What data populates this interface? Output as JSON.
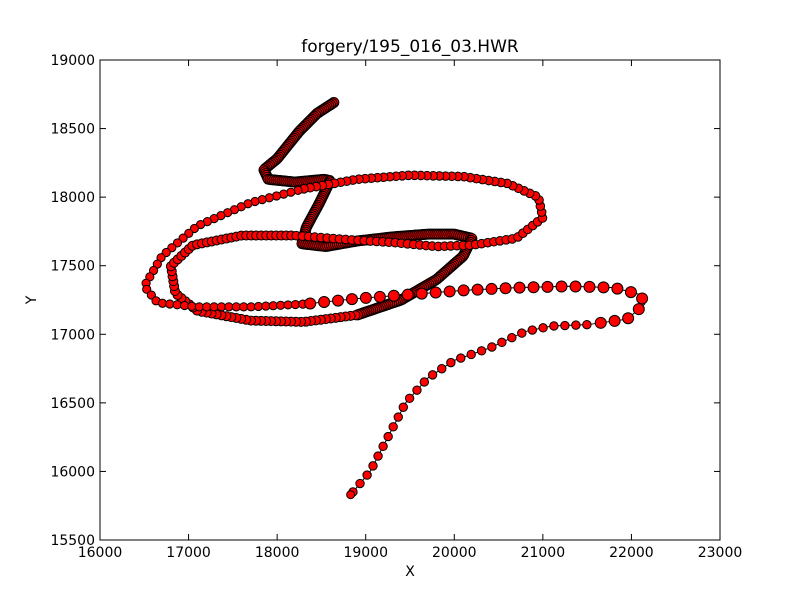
{
  "chart_data": {
    "type": "scatter",
    "title": "forgery/195_016_03.HWR",
    "xlabel": "X",
    "ylabel": "Y",
    "xlim": [
      16000,
      23000
    ],
    "ylim": [
      15500,
      19000
    ],
    "xticks": [
      "16000",
      "17000",
      "18000",
      "19000",
      "20000",
      "21000",
      "22000",
      "23000"
    ],
    "yticks": [
      "15500",
      "16000",
      "16500",
      "17000",
      "17500",
      "18000",
      "18500",
      "19000"
    ],
    "grid": false,
    "legend": "none",
    "marker_color": "#ff0000",
    "marker_edge_color": "#000000",
    "stroke_path": [
      [
        18640,
        18690
      ],
      [
        18450,
        18610
      ],
      [
        18250,
        18480
      ],
      [
        18000,
        18280
      ],
      [
        17850,
        18200
      ],
      [
        17900,
        18130
      ],
      [
        18200,
        18110
      ],
      [
        18530,
        18130
      ],
      [
        18600,
        18120
      ],
      [
        18480,
        17960
      ],
      [
        18330,
        17780
      ],
      [
        18280,
        17660
      ],
      [
        18550,
        17640
      ],
      [
        18900,
        17680
      ],
      [
        19300,
        17710
      ],
      [
        19700,
        17730
      ],
      [
        20000,
        17730
      ],
      [
        20200,
        17700
      ],
      [
        20100,
        17570
      ],
      [
        19800,
        17400
      ],
      [
        19400,
        17250
      ],
      [
        18900,
        17140
      ],
      [
        18300,
        17090
      ],
      [
        17700,
        17100
      ],
      [
        17100,
        17170
      ],
      [
        16850,
        17300
      ],
      [
        16800,
        17500
      ],
      [
        17050,
        17650
      ],
      [
        17600,
        17720
      ],
      [
        18200,
        17720
      ],
      [
        18800,
        17690
      ],
      [
        19300,
        17670
      ],
      [
        19800,
        17640
      ],
      [
        20200,
        17650
      ],
      [
        20700,
        17700
      ],
      [
        21000,
        17850
      ],
      [
        20950,
        18000
      ],
      [
        20600,
        18100
      ],
      [
        20100,
        18150
      ],
      [
        19500,
        18160
      ],
      [
        18900,
        18130
      ],
      [
        18300,
        18060
      ],
      [
        17700,
        17960
      ],
      [
        17100,
        17790
      ],
      [
        16700,
        17570
      ],
      [
        16500,
        17350
      ],
      [
        16650,
        17230
      ],
      [
        17100,
        17200
      ],
      [
        17700,
        17200
      ],
      [
        18300,
        17220
      ],
      [
        18900,
        17260
      ],
      [
        19500,
        17290
      ],
      [
        20100,
        17320
      ],
      [
        20700,
        17340
      ],
      [
        21300,
        17350
      ],
      [
        21800,
        17340
      ],
      [
        22100,
        17290
      ],
      [
        22150,
        17220
      ],
      [
        21950,
        17110
      ],
      [
        21500,
        17070
      ],
      [
        21100,
        17060
      ],
      [
        20800,
        17020
      ],
      [
        20400,
        16900
      ],
      [
        20000,
        16810
      ],
      [
        19700,
        16680
      ],
      [
        19450,
        16500
      ],
      [
        19250,
        16250
      ],
      [
        19050,
        16000
      ],
      [
        18830,
        15830
      ]
    ]
  }
}
